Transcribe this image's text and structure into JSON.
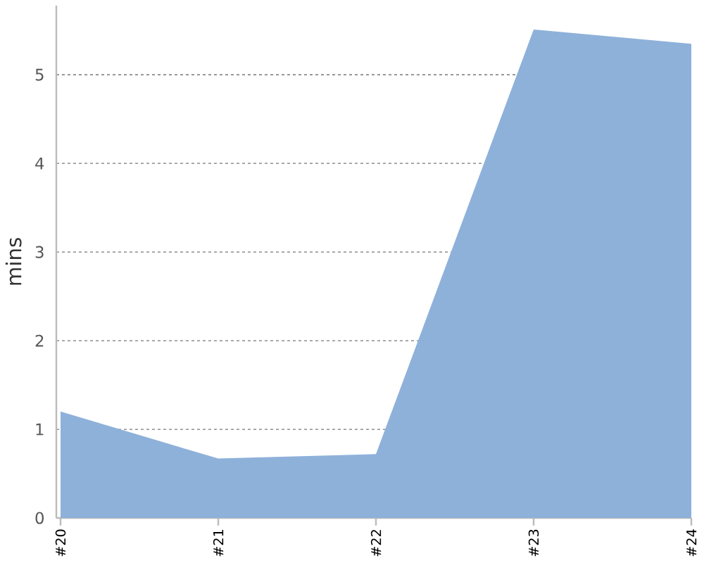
{
  "chart_data": {
    "type": "area",
    "categories": [
      "#20",
      "#21",
      "#22",
      "#23",
      "#24"
    ],
    "values": [
      1.2,
      0.67,
      0.72,
      5.51,
      5.35
    ],
    "color": "#8eb1da",
    "ylabel": "mins",
    "ylim": [
      0,
      5.78
    ],
    "yticks": [
      0,
      1,
      2,
      3,
      4,
      5
    ],
    "grid": "y"
  }
}
